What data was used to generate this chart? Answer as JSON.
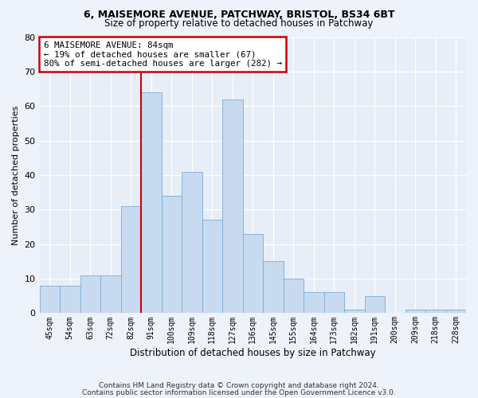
{
  "title1": "6, MAISEMORE AVENUE, PATCHWAY, BRISTOL, BS34 6BT",
  "title2": "Size of property relative to detached houses in Patchway",
  "xlabel": "Distribution of detached houses by size in Patchway",
  "ylabel": "Number of detached properties",
  "bar_labels": [
    "45sqm",
    "54sqm",
    "63sqm",
    "72sqm",
    "82sqm",
    "91sqm",
    "100sqm",
    "109sqm",
    "118sqm",
    "127sqm",
    "136sqm",
    "145sqm",
    "155sqm",
    "164sqm",
    "173sqm",
    "182sqm",
    "191sqm",
    "200sqm",
    "209sqm",
    "218sqm",
    "228sqm"
  ],
  "bar_values": [
    8,
    8,
    11,
    11,
    31,
    64,
    34,
    41,
    27,
    62,
    23,
    15,
    10,
    6,
    6,
    1,
    5,
    0,
    1,
    1,
    1
  ],
  "bar_color": "#c8daf0",
  "bar_edge_color": "#7aadd6",
  "property_bin_index": 4,
  "annotation_line_color": "#cc0000",
  "annotation_box_color": "#cc0000",
  "annotation_line1": "6 MAISEMORE AVENUE: 84sqm",
  "annotation_line2": "← 19% of detached houses are smaller (67)",
  "annotation_line3": "80% of semi-detached houses are larger (282) →",
  "footer1": "Contains HM Land Registry data © Crown copyright and database right 2024.",
  "footer2": "Contains public sector information licensed under the Open Government Licence v3.0.",
  "ylim": [
    0,
    80
  ],
  "yticks": [
    0,
    10,
    20,
    30,
    40,
    50,
    60,
    70,
    80
  ],
  "background_color": "#eef2fa",
  "plot_background": "#e8eef8"
}
